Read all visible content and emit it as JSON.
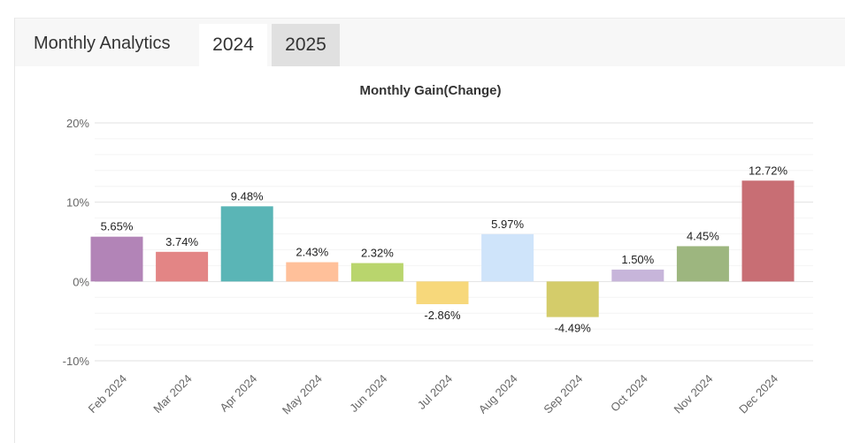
{
  "header": {
    "title": "Monthly Analytics",
    "tabs": [
      {
        "label": "2024",
        "active": true
      },
      {
        "label": "2025",
        "active": false
      }
    ]
  },
  "chart_data": {
    "type": "bar",
    "title": "Monthly Gain(Change)",
    "xlabel": "",
    "ylabel": "",
    "ylim": [
      -10,
      20
    ],
    "yticks": [
      -10,
      0,
      10,
      20
    ],
    "ytick_labels": [
      "-10%",
      "0%",
      "10%",
      "20%"
    ],
    "grid": true,
    "categories": [
      "Feb 2024",
      "Mar 2024",
      "Apr 2024",
      "May 2024",
      "Jun 2024",
      "Jul 2024",
      "Aug 2024",
      "Sep 2024",
      "Oct 2024",
      "Nov 2024",
      "Dec 2024"
    ],
    "values": [
      5.65,
      3.74,
      9.48,
      2.43,
      2.32,
      -2.86,
      5.97,
      -4.49,
      1.5,
      4.45,
      12.72
    ],
    "value_labels": [
      "5.65%",
      "3.74%",
      "9.48%",
      "2.43%",
      "2.32%",
      "-2.86%",
      "5.97%",
      "-4.49%",
      "1.50%",
      "4.45%",
      "12.72%"
    ],
    "colors": [
      "#b284b7",
      "#e38585",
      "#5ab5b6",
      "#ffc09a",
      "#b9d56d",
      "#f7d87b",
      "#cfe4fa",
      "#d4cc6a",
      "#c7b5da",
      "#9db67f",
      "#c86e74"
    ]
  }
}
